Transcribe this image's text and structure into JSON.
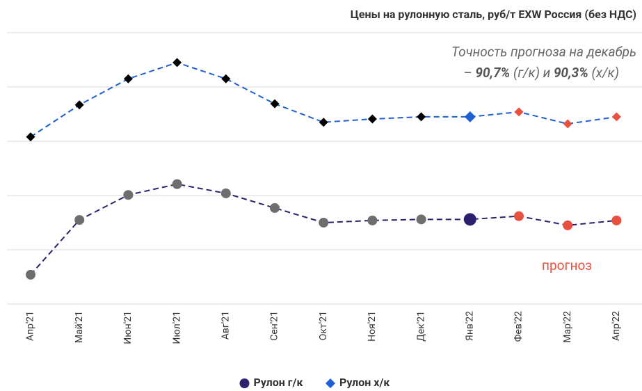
{
  "chart_data": {
    "type": "line",
    "title": "Цены на рулонную сталь, руб/т EXW Россия (без НДС)",
    "annotation": {
      "line1": "Точность прогноза на декабрь",
      "line2": [
        "– ",
        "90,7%",
        " (г/к) и ",
        "90,3%",
        " (х/к)"
      ]
    },
    "forecast_label": "прогноз",
    "forecast_color": "#e8503f",
    "categories": [
      "Апр'21",
      "Май'21",
      "Июн'21",
      "Июл'21",
      "Авг'21",
      "Сен'21",
      "Окт'21",
      "Ноя'21",
      "Дек'21",
      "Янв'22",
      "Фев'22",
      "Мар'22",
      "Апр'22"
    ],
    "series": [
      {
        "name": "Рулон г/к",
        "color": "#2e1f6e",
        "marker": "circle",
        "marker_color": "#6e6e6e",
        "values": [
          55.4,
          65.5,
          70.1,
          72.1,
          70.4,
          67.7,
          65.0,
          65.4,
          65.6,
          65.6,
          66.2,
          64.5,
          65.4
        ]
      },
      {
        "name": "Рулон х/к",
        "color": "#1f5fd6",
        "marker": "diamond",
        "marker_color": "#000000",
        "values": [
          80.8,
          86.7,
          91.5,
          94.5,
          91.5,
          86.9,
          83.5,
          84.1,
          84.5,
          84.5,
          85.4,
          83.2,
          84.5
        ]
      }
    ],
    "current_index": 9,
    "forecast_from": 10,
    "ylim": [
      50,
      100
    ],
    "yticks": [
      50,
      60,
      70,
      80,
      90,
      100
    ],
    "grid": true,
    "legend": "bottom"
  }
}
